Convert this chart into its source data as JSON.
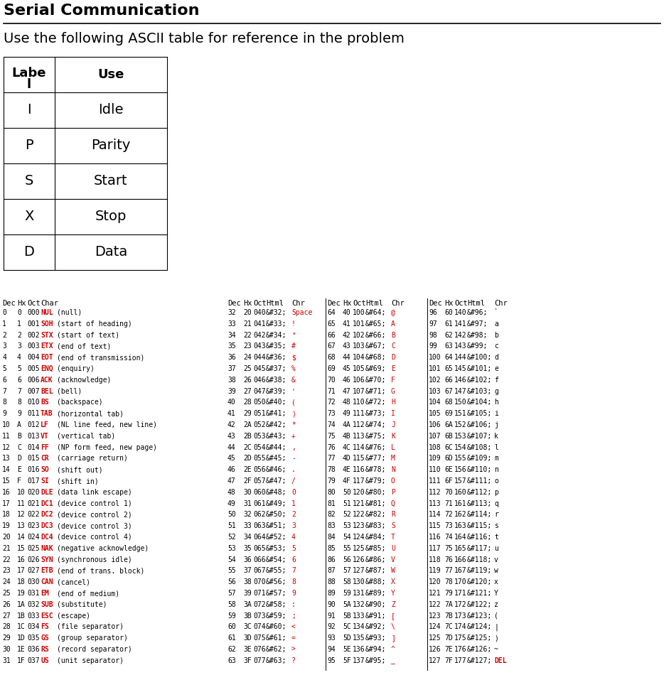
{
  "title": "Serial Communication",
  "subtitle": "Use the following ASCII table for reference in the problem",
  "label_table_rows": [
    [
      "I",
      "Idle"
    ],
    [
      "P",
      "Parity"
    ],
    [
      "S",
      "Start"
    ],
    [
      "X",
      "Stop"
    ],
    [
      "D",
      "Data"
    ]
  ],
  "ascii_rows_col1": [
    [
      "0",
      "0",
      "000",
      "NUL",
      "(null)"
    ],
    [
      "1",
      "1",
      "001",
      "SOH",
      "(start of heading)"
    ],
    [
      "2",
      "2",
      "002",
      "STX",
      "(start of text)"
    ],
    [
      "3",
      "3",
      "003",
      "ETX",
      "(end of text)"
    ],
    [
      "4",
      "4",
      "004",
      "EOT",
      "(end of transmission)"
    ],
    [
      "5",
      "5",
      "005",
      "ENQ",
      "(enquiry)"
    ],
    [
      "6",
      "6",
      "006",
      "ACK",
      "(acknowledge)"
    ],
    [
      "7",
      "7",
      "007",
      "BEL",
      "(bell)"
    ],
    [
      "8",
      "8",
      "010",
      "BS",
      "(backspace)"
    ],
    [
      "9",
      "9",
      "011",
      "TAB",
      "(horizontal tab)"
    ],
    [
      "10",
      "A",
      "012",
      "LF",
      "(NL line feed, new line)"
    ],
    [
      "11",
      "B",
      "013",
      "VT",
      "(vertical tab)"
    ],
    [
      "12",
      "C",
      "014",
      "FF",
      "(NP form feed, new page)"
    ],
    [
      "13",
      "D",
      "015",
      "CR",
      "(carriage return)"
    ],
    [
      "14",
      "E",
      "016",
      "SO",
      "(shift out)"
    ],
    [
      "15",
      "F",
      "017",
      "SI",
      "(shift in)"
    ],
    [
      "16",
      "10",
      "020",
      "DLE",
      "(data link escape)"
    ],
    [
      "17",
      "11",
      "021",
      "DC1",
      "(device control 1)"
    ],
    [
      "18",
      "12",
      "022",
      "DC2",
      "(device control 2)"
    ],
    [
      "19",
      "13",
      "023",
      "DC3",
      "(device control 3)"
    ],
    [
      "20",
      "14",
      "024",
      "DC4",
      "(device control 4)"
    ],
    [
      "21",
      "15",
      "025",
      "NAK",
      "(negative acknowledge)"
    ],
    [
      "22",
      "16",
      "026",
      "SYN",
      "(synchronous idle)"
    ],
    [
      "23",
      "17",
      "027",
      "ETB",
      "(end of trans. block)"
    ],
    [
      "24",
      "18",
      "030",
      "CAN",
      "(cancel)"
    ],
    [
      "25",
      "19",
      "031",
      "EM",
      "(end of medium)"
    ],
    [
      "26",
      "1A",
      "032",
      "SUB",
      "(substitute)"
    ],
    [
      "27",
      "1B",
      "033",
      "ESC",
      "(escape)"
    ],
    [
      "28",
      "1C",
      "034",
      "FS",
      "(file separator)"
    ],
    [
      "29",
      "1D",
      "035",
      "GS",
      "(group separator)"
    ],
    [
      "30",
      "1E",
      "036",
      "RS",
      "(record separator)"
    ],
    [
      "31",
      "1F",
      "037",
      "US",
      "(unit separator)"
    ]
  ],
  "ascii_rows_col2": [
    [
      "32",
      "20",
      "040",
      "&#32;",
      "Space"
    ],
    [
      "33",
      "21",
      "041",
      "&#33;",
      "!"
    ],
    [
      "34",
      "22",
      "042",
      "&#34;",
      "\""
    ],
    [
      "35",
      "23",
      "043",
      "&#35;",
      "#"
    ],
    [
      "36",
      "24",
      "044",
      "&#36;",
      "$"
    ],
    [
      "37",
      "25",
      "045",
      "&#37;",
      "%"
    ],
    [
      "38",
      "26",
      "046",
      "&#38;",
      "&"
    ],
    [
      "39",
      "27",
      "047",
      "&#39;",
      "'"
    ],
    [
      "40",
      "28",
      "050",
      "&#40;",
      "("
    ],
    [
      "41",
      "29",
      "051",
      "&#41;",
      ")"
    ],
    [
      "42",
      "2A",
      "052",
      "&#42;",
      "*"
    ],
    [
      "43",
      "2B",
      "053",
      "&#43;",
      "+"
    ],
    [
      "44",
      "2C",
      "054",
      "&#44;",
      ","
    ],
    [
      "45",
      "2D",
      "055",
      "&#45;",
      "-"
    ],
    [
      "46",
      "2E",
      "056",
      "&#46;",
      "."
    ],
    [
      "47",
      "2F",
      "057",
      "&#47;",
      "/"
    ],
    [
      "48",
      "30",
      "060",
      "&#48;",
      "0"
    ],
    [
      "49",
      "31",
      "061",
      "&#49;",
      "1"
    ],
    [
      "50",
      "32",
      "062",
      "&#50;",
      "2"
    ],
    [
      "51",
      "33",
      "063",
      "&#51;",
      "3"
    ],
    [
      "52",
      "34",
      "064",
      "&#52;",
      "4"
    ],
    [
      "53",
      "35",
      "065",
      "&#53;",
      "5"
    ],
    [
      "54",
      "36",
      "066",
      "&#54;",
      "6"
    ],
    [
      "55",
      "37",
      "067",
      "&#55;",
      "7"
    ],
    [
      "56",
      "38",
      "070",
      "&#56;",
      "8"
    ],
    [
      "57",
      "39",
      "071",
      "&#57;",
      "9"
    ],
    [
      "58",
      "3A",
      "072",
      "&#58;",
      ":"
    ],
    [
      "59",
      "3B",
      "073",
      "&#59;",
      ";"
    ],
    [
      "60",
      "3C",
      "074",
      "&#60;",
      "<"
    ],
    [
      "61",
      "3D",
      "075",
      "&#61;",
      "="
    ],
    [
      "62",
      "3E",
      "076",
      "&#62;",
      ">"
    ],
    [
      "63",
      "3F",
      "077",
      "&#63;",
      "?"
    ]
  ],
  "ascii_rows_col3": [
    [
      "64",
      "40",
      "100",
      "&#64;",
      "@"
    ],
    [
      "65",
      "41",
      "101",
      "&#65;",
      "A"
    ],
    [
      "66",
      "42",
      "102",
      "&#66;",
      "B"
    ],
    [
      "67",
      "43",
      "103",
      "&#67;",
      "C"
    ],
    [
      "68",
      "44",
      "104",
      "&#68;",
      "D"
    ],
    [
      "69",
      "45",
      "105",
      "&#69;",
      "E"
    ],
    [
      "70",
      "46",
      "106",
      "&#70;",
      "F"
    ],
    [
      "71",
      "47",
      "107",
      "&#71;",
      "G"
    ],
    [
      "72",
      "48",
      "110",
      "&#72;",
      "H"
    ],
    [
      "73",
      "49",
      "111",
      "&#73;",
      "I"
    ],
    [
      "74",
      "4A",
      "112",
      "&#74;",
      "J"
    ],
    [
      "75",
      "4B",
      "113",
      "&#75;",
      "K"
    ],
    [
      "76",
      "4C",
      "114",
      "&#76;",
      "L"
    ],
    [
      "77",
      "4D",
      "115",
      "&#77;",
      "M"
    ],
    [
      "78",
      "4E",
      "116",
      "&#78;",
      "N"
    ],
    [
      "79",
      "4F",
      "117",
      "&#79;",
      "O"
    ],
    [
      "80",
      "50",
      "120",
      "&#80;",
      "P"
    ],
    [
      "81",
      "51",
      "121",
      "&#81;",
      "Q"
    ],
    [
      "82",
      "52",
      "122",
      "&#82;",
      "R"
    ],
    [
      "83",
      "53",
      "123",
      "&#83;",
      "S"
    ],
    [
      "84",
      "54",
      "124",
      "&#84;",
      "T"
    ],
    [
      "85",
      "55",
      "125",
      "&#85;",
      "U"
    ],
    [
      "86",
      "56",
      "126",
      "&#86;",
      "V"
    ],
    [
      "87",
      "57",
      "127",
      "&#87;",
      "W"
    ],
    [
      "88",
      "58",
      "130",
      "&#88;",
      "X"
    ],
    [
      "89",
      "59",
      "131",
      "&#89;",
      "Y"
    ],
    [
      "90",
      "5A",
      "132",
      "&#90;",
      "Z"
    ],
    [
      "91",
      "5B",
      "133",
      "&#91;",
      "["
    ],
    [
      "92",
      "5C",
      "134",
      "&#92;",
      "\\"
    ],
    [
      "93",
      "5D",
      "135",
      "&#93;",
      "]"
    ],
    [
      "94",
      "5E",
      "136",
      "&#94;",
      "^"
    ],
    [
      "95",
      "5F",
      "137",
      "&#95;",
      "_"
    ]
  ],
  "ascii_rows_col4": [
    [
      "96",
      "60",
      "140",
      "&#96;",
      "`"
    ],
    [
      "97",
      "61",
      "141",
      "&#97;",
      "a"
    ],
    [
      "98",
      "62",
      "142",
      "&#98;",
      "b"
    ],
    [
      "99",
      "63",
      "143",
      "&#99;",
      "c"
    ],
    [
      "100",
      "64",
      "144",
      "&#100;",
      "d"
    ],
    [
      "101",
      "65",
      "145",
      "&#101;",
      "e"
    ],
    [
      "102",
      "66",
      "146",
      "&#102;",
      "f"
    ],
    [
      "103",
      "67",
      "147",
      "&#103;",
      "g"
    ],
    [
      "104",
      "68",
      "150",
      "&#104;",
      "h"
    ],
    [
      "105",
      "69",
      "151",
      "&#105;",
      "i"
    ],
    [
      "106",
      "6A",
      "152",
      "&#106;",
      "j"
    ],
    [
      "107",
      "6B",
      "153",
      "&#107;",
      "k"
    ],
    [
      "108",
      "6C",
      "154",
      "&#108;",
      "l"
    ],
    [
      "109",
      "6D",
      "155",
      "&#109;",
      "m"
    ],
    [
      "110",
      "6E",
      "156",
      "&#110;",
      "n"
    ],
    [
      "111",
      "6F",
      "157",
      "&#111;",
      "o"
    ],
    [
      "112",
      "70",
      "160",
      "&#112;",
      "p"
    ],
    [
      "113",
      "71",
      "161",
      "&#113;",
      "q"
    ],
    [
      "114",
      "72",
      "162",
      "&#114;",
      "r"
    ],
    [
      "115",
      "73",
      "163",
      "&#115;",
      "s"
    ],
    [
      "116",
      "74",
      "164",
      "&#116;",
      "t"
    ],
    [
      "117",
      "75",
      "165",
      "&#117;",
      "u"
    ],
    [
      "118",
      "76",
      "166",
      "&#118;",
      "v"
    ],
    [
      "119",
      "77",
      "167",
      "&#119;",
      "w"
    ],
    [
      "120",
      "78",
      "170",
      "&#120;",
      "x"
    ],
    [
      "121",
      "79",
      "171",
      "&#121;",
      "Y"
    ],
    [
      "122",
      "7A",
      "172",
      "&#122;",
      "z"
    ],
    [
      "123",
      "7B",
      "173",
      "&#123;",
      "("
    ],
    [
      "124",
      "7C",
      "174",
      "&#124;",
      "|"
    ],
    [
      "125",
      "7D",
      "175",
      "&#125;",
      ")"
    ],
    [
      "126",
      "7E",
      "176",
      "&#126;",
      "~"
    ],
    [
      "127",
      "7F",
      "177",
      "&#127;",
      "DEL"
    ]
  ],
  "red_abbrevs": [
    "NUL",
    "SOH",
    "STX",
    "ETX",
    "EOT",
    "ENQ",
    "ACK",
    "BEL",
    "BS",
    "TAB",
    "LF",
    "VT",
    "FF",
    "CR",
    "SO",
    "SI",
    "DLE",
    "DC1",
    "DC2",
    "DC3",
    "DC4",
    "NAK",
    "SYN",
    "ETB",
    "CAN",
    "EM",
    "SUB",
    "ESC",
    "FS",
    "GS",
    "RS",
    "US"
  ],
  "title_fontsize": 16,
  "subtitle_fontsize": 14,
  "bg_color": "#ffffff",
  "title_color": "#000000",
  "subtitle_color": "#000000",
  "table_header_fontsize": 13,
  "table_data_fontsize": 14,
  "ascii_hdr_fontsize": 7.5,
  "ascii_data_fontsize": 7.0
}
